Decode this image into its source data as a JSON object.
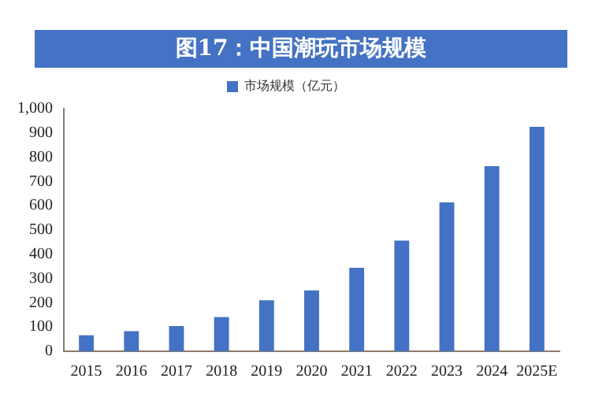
{
  "chart_data": {
    "type": "bar",
    "title": "图17：中国潮玩市场规模",
    "categories": [
      "2015",
      "2016",
      "2017",
      "2018",
      "2019",
      "2020",
      "2021",
      "2022",
      "2023",
      "2024",
      "2025E"
    ],
    "series": [
      {
        "name": "市场规模（亿元）",
        "color": "#4472c4",
        "values": [
          66,
          83,
          104,
          141,
          210,
          251,
          344,
          456,
          614,
          763,
          925
        ]
      }
    ],
    "ylim": [
      0,
      1000
    ],
    "yticks": [
      0,
      {
        "value": 100,
        "label": "100"
      },
      200,
      300,
      400,
      500,
      600,
      700,
      800,
      900,
      {
        "value": 1000,
        "label": "1,000"
      }
    ],
    "grid": false,
    "legend": "top"
  }
}
